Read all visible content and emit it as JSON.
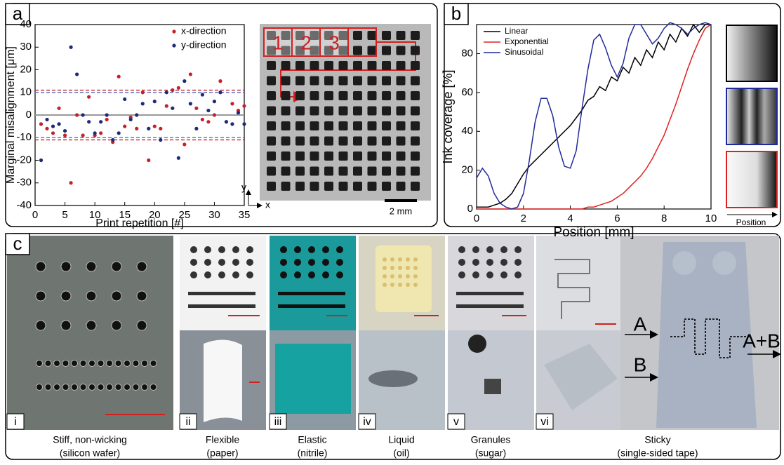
{
  "panel_labels": [
    "a",
    "b",
    "c"
  ],
  "chart_data": [
    {
      "type": "scatter",
      "xlabel": "Print repetition [#]",
      "ylabel": "Marginal misalignment [μm]",
      "x": [
        1,
        2,
        3,
        4,
        5,
        6,
        7,
        8,
        9,
        10,
        11,
        12,
        13,
        14,
        15,
        16,
        17,
        18,
        19,
        20,
        21,
        22,
        23,
        24,
        25,
        26,
        27,
        28,
        29,
        30,
        31,
        32,
        33,
        34,
        35
      ],
      "series": [
        {
          "name": "x-direction",
          "color": "#c8202a",
          "values": [
            -4,
            -6,
            -8,
            3,
            -9,
            -30,
            0,
            -9,
            8,
            -9,
            -8,
            -2,
            -12,
            17,
            -5,
            -1,
            -6,
            10,
            -20,
            -5,
            -6,
            4,
            11,
            12,
            -13,
            18,
            3,
            -2,
            -3,
            0,
            15,
            -3,
            5,
            2,
            4
          ]
        },
        {
          "name": "y-direction",
          "color": "#1c2a7a",
          "values": [
            -20,
            -2,
            -5,
            -4,
            -7,
            30,
            18,
            0,
            -3,
            -8,
            -3,
            0,
            -11,
            -8,
            7,
            -2,
            0,
            5,
            -6,
            6,
            -11,
            10,
            3,
            -19,
            15,
            5,
            -6,
            9,
            2,
            6,
            10,
            -3,
            -4,
            1,
            -4
          ]
        }
      ],
      "hlines": [
        {
          "value": 11,
          "color": "#c8202a",
          "style": "dashed"
        },
        {
          "value": -11,
          "color": "#c8202a",
          "style": "dashed"
        },
        {
          "value": 10,
          "color": "#6a7ac0",
          "style": "dashed"
        },
        {
          "value": -10,
          "color": "#6a7ac0",
          "style": "dashed"
        },
        {
          "value": 0,
          "color": "#999999",
          "style": "solid"
        }
      ],
      "xlim": [
        0,
        35
      ],
      "ylim": [
        -40,
        40
      ],
      "xticks": [
        0,
        5,
        10,
        15,
        20,
        25,
        30,
        35
      ],
      "yticks": [
        -40,
        -30,
        -20,
        -10,
        0,
        10,
        20,
        30,
        40
      ],
      "legend": "upper right"
    },
    {
      "type": "line",
      "xlabel": "Position [mm]",
      "ylabel": "Ink coverage [%]",
      "x": [
        0,
        0.25,
        0.5,
        0.75,
        1,
        1.25,
        1.5,
        1.75,
        2,
        2.25,
        2.5,
        2.75,
        3,
        3.25,
        3.5,
        3.75,
        4,
        4.25,
        4.5,
        4.75,
        5,
        5.25,
        5.5,
        5.75,
        6,
        6.25,
        6.5,
        6.75,
        7,
        7.25,
        7.5,
        7.75,
        8,
        8.25,
        8.5,
        8.75,
        9,
        9.25,
        9.5,
        9.75,
        10
      ],
      "series": [
        {
          "name": "Linear",
          "color": "#000000",
          "values": [
            1,
            1,
            1,
            2,
            3,
            5,
            8,
            13,
            18,
            22,
            25,
            28,
            31,
            34,
            37,
            40,
            43,
            47,
            51,
            56,
            58,
            63,
            61,
            68,
            66,
            73,
            70,
            78,
            74,
            82,
            78,
            86,
            82,
            90,
            86,
            93,
            89,
            95,
            91,
            95,
            95
          ]
        },
        {
          "name": "Exponential",
          "color": "#e02020",
          "values": [
            0,
            0,
            0,
            0,
            0,
            0,
            0,
            0,
            0,
            0,
            0,
            0,
            0,
            0,
            0,
            0,
            0,
            0,
            0,
            1,
            1,
            2,
            3,
            4,
            6,
            8,
            11,
            14,
            17,
            21,
            26,
            32,
            38,
            46,
            54,
            63,
            72,
            80,
            87,
            93,
            95
          ]
        },
        {
          "name": "Sinusoidal",
          "color": "#1f2a9a",
          "values": [
            16,
            21,
            17,
            8,
            3,
            1,
            0,
            1,
            8,
            25,
            45,
            57,
            57,
            48,
            32,
            22,
            21,
            30,
            52,
            72,
            87,
            90,
            83,
            74,
            68,
            75,
            88,
            95,
            95,
            90,
            85,
            88,
            93,
            96,
            95,
            93,
            90,
            93,
            95,
            96,
            95
          ]
        }
      ],
      "xlim": [
        0,
        10
      ],
      "ylim": [
        0,
        95
      ],
      "xticks": [
        0,
        2,
        4,
        6,
        8,
        10
      ],
      "yticks": [
        0,
        20,
        40,
        60,
        80
      ],
      "legend": "upper left"
    }
  ],
  "photo_a": {
    "cells": [
      "1",
      "2",
      "3"
    ],
    "axis_x": "x",
    "axis_y": "y",
    "scale_bar": "2 mm"
  },
  "swatch_label": "Position",
  "samples": [
    {
      "numeral": "i",
      "caption": [
        "Stiff, non-wicking",
        "(silicon wafer)"
      ]
    },
    {
      "numeral": "ii",
      "caption": [
        "Flexible",
        "(paper)"
      ]
    },
    {
      "numeral": "iii",
      "caption": [
        "Elastic",
        "(nitrile)"
      ]
    },
    {
      "numeral": "iv",
      "caption": [
        "Liquid",
        "(oil)"
      ]
    },
    {
      "numeral": "v",
      "caption": [
        "Granules",
        "(sugar)"
      ]
    },
    {
      "numeral": "vi",
      "caption": [
        "Sticky",
        "(single-sided tape)"
      ]
    }
  ],
  "tape_labels": [
    "A",
    "B",
    "A+B"
  ]
}
